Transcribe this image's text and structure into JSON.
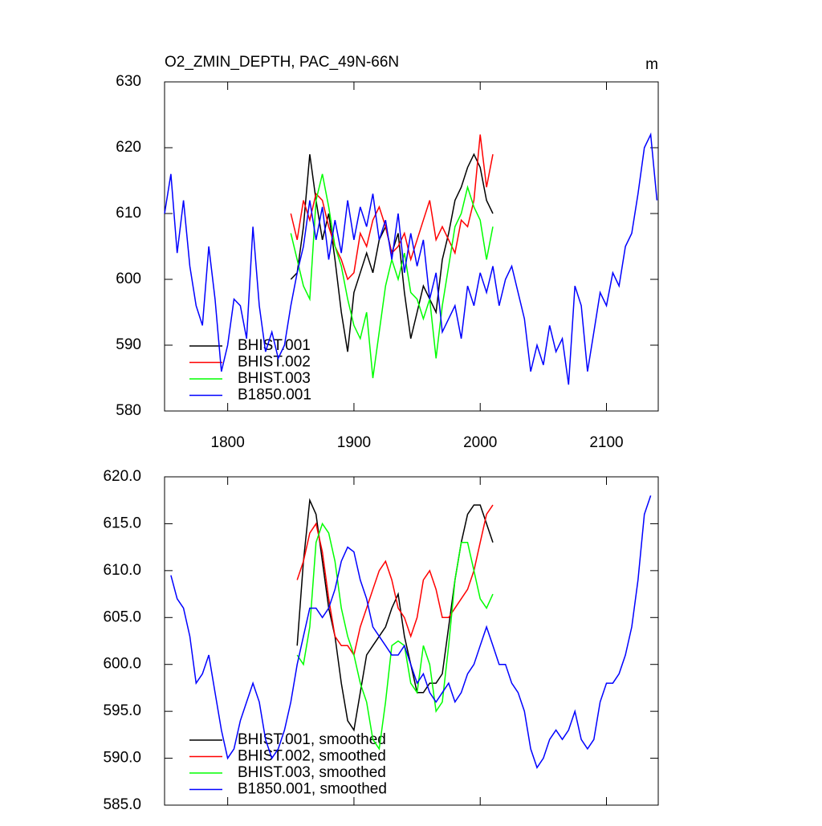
{
  "chart_data": [
    {
      "type": "line",
      "title": "O2_ZMIN_DEPTH, PAC_49N-66N",
      "units": "m",
      "xlim": [
        1750,
        2141
      ],
      "xticks": [
        1800,
        1900,
        2000,
        2100
      ],
      "xtick_labels": true,
      "ylim": [
        580,
        630
      ],
      "yticks": [
        580,
        590,
        600,
        610,
        620,
        630
      ],
      "legend": "lower-left",
      "series": [
        {
          "name": "BHIST.001",
          "color": "#000000",
          "x": [
            1850,
            1855,
            1860,
            1865,
            1870,
            1875,
            1880,
            1885,
            1890,
            1895,
            1900,
            1905,
            1910,
            1915,
            1920,
            1925,
            1930,
            1935,
            1940,
            1945,
            1950,
            1955,
            1960,
            1965,
            1970,
            1975,
            1980,
            1985,
            1990,
            1995,
            2000,
            2005,
            2010
          ],
          "values": [
            600,
            601,
            608,
            619,
            612,
            606,
            610,
            603,
            595,
            589,
            598,
            601,
            604,
            601,
            606,
            608,
            604,
            607,
            598,
            591,
            595,
            599,
            597,
            595,
            603,
            607,
            612,
            614,
            617,
            619,
            617,
            612,
            610
          ]
        },
        {
          "name": "BHIST.002",
          "color": "#ff0000",
          "x": [
            1850,
            1855,
            1860,
            1865,
            1870,
            1875,
            1880,
            1885,
            1890,
            1895,
            1900,
            1905,
            1910,
            1915,
            1920,
            1925,
            1930,
            1935,
            1940,
            1945,
            1950,
            1955,
            1960,
            1965,
            1970,
            1975,
            1980,
            1985,
            1990,
            1995,
            2000,
            2005,
            2010
          ],
          "values": [
            610,
            606,
            612,
            609,
            613,
            612,
            608,
            605,
            603,
            600,
            601,
            607,
            605,
            609,
            611,
            608,
            604,
            605,
            607,
            603,
            606,
            609,
            612,
            606,
            608,
            606,
            604,
            609,
            608,
            612,
            622,
            614,
            619
          ]
        },
        {
          "name": "BHIST.003",
          "color": "#00ff00",
          "x": [
            1850,
            1855,
            1860,
            1865,
            1870,
            1875,
            1880,
            1885,
            1890,
            1895,
            1900,
            1905,
            1910,
            1915,
            1920,
            1925,
            1930,
            1935,
            1940,
            1945,
            1950,
            1955,
            1960,
            1965,
            1970,
            1975,
            1980,
            1985,
            1990,
            1995,
            2000,
            2005,
            2010
          ],
          "values": [
            607,
            603,
            599,
            597,
            612,
            616,
            611,
            605,
            602,
            597,
            593,
            591,
            595,
            585,
            592,
            599,
            603,
            600,
            604,
            598,
            597,
            594,
            597,
            588,
            596,
            602,
            608,
            610,
            614,
            611,
            609,
            603,
            608
          ]
        },
        {
          "name": "B1850.001",
          "color": "#0000ff",
          "x": [
            1750,
            1755,
            1760,
            1765,
            1770,
            1775,
            1780,
            1785,
            1790,
            1795,
            1800,
            1805,
            1810,
            1815,
            1820,
            1825,
            1830,
            1835,
            1840,
            1845,
            1850,
            1855,
            1860,
            1865,
            1870,
            1875,
            1880,
            1885,
            1890,
            1895,
            1900,
            1905,
            1910,
            1915,
            1920,
            1925,
            1930,
            1935,
            1940,
            1945,
            1950,
            1955,
            1960,
            1965,
            1970,
            1975,
            1980,
            1985,
            1990,
            1995,
            2000,
            2005,
            2010,
            2015,
            2020,
            2025,
            2030,
            2035,
            2040,
            2045,
            2050,
            2055,
            2060,
            2065,
            2070,
            2075,
            2080,
            2085,
            2090,
            2095,
            2100,
            2105,
            2110,
            2115,
            2120,
            2125,
            2130,
            2135,
            2140
          ],
          "values": [
            610,
            616,
            604,
            612,
            602,
            596,
            593,
            605,
            597,
            586,
            590,
            597,
            596,
            591,
            608,
            596,
            589,
            592,
            588,
            590,
            596,
            601,
            605,
            612,
            606,
            611,
            603,
            609,
            604,
            612,
            606,
            611,
            608,
            613,
            606,
            609,
            603,
            610,
            601,
            607,
            602,
            606,
            597,
            601,
            592,
            594,
            596,
            591,
            599,
            596,
            601,
            598,
            602,
            596,
            600,
            602,
            598,
            594,
            586,
            590,
            587,
            593,
            589,
            591,
            584,
            599,
            596,
            586,
            592,
            598,
            596,
            601,
            599,
            605,
            607,
            613,
            620,
            622,
            612
          ]
        }
      ]
    },
    {
      "type": "line",
      "xlim": [
        1750,
        2141
      ],
      "xticks": [
        1800,
        1900,
        2000,
        2100
      ],
      "xtick_labels": false,
      "ylim": [
        585,
        620
      ],
      "yticks": [
        {
          "value": 585,
          "label": "585.0"
        },
        {
          "value": 590,
          "label": "590.0"
        },
        {
          "value": 595,
          "label": "595.0"
        },
        {
          "value": 600,
          "label": "600.0"
        },
        {
          "value": 605,
          "label": "605.0"
        },
        {
          "value": 610,
          "label": "610.0"
        },
        {
          "value": 615,
          "label": "615.0"
        },
        {
          "value": 620,
          "label": "620.0"
        }
      ],
      "legend": "lower-left",
      "series": [
        {
          "name": "BHIST.001, smoothed",
          "color": "#000000",
          "x": [
            1855,
            1860,
            1865,
            1870,
            1875,
            1880,
            1885,
            1890,
            1895,
            1900,
            1905,
            1910,
            1915,
            1920,
            1925,
            1930,
            1935,
            1940,
            1945,
            1950,
            1955,
            1960,
            1965,
            1970,
            1975,
            1980,
            1985,
            1990,
            1995,
            2000,
            2005,
            2010
          ],
          "values": [
            602,
            611,
            617.5,
            616,
            611,
            606,
            603,
            598,
            594,
            593,
            597,
            601,
            602,
            603,
            604,
            606,
            607.5,
            603,
            600,
            597,
            597,
            598,
            598,
            599,
            604,
            609,
            613,
            616,
            617,
            617,
            615,
            613
          ]
        },
        {
          "name": "BHIST.002, smoothed",
          "color": "#ff0000",
          "x": [
            1855,
            1860,
            1865,
            1870,
            1875,
            1880,
            1885,
            1890,
            1895,
            1900,
            1905,
            1910,
            1915,
            1920,
            1925,
            1930,
            1935,
            1940,
            1945,
            1950,
            1955,
            1960,
            1965,
            1970,
            1975,
            1980,
            1985,
            1990,
            1995,
            2000,
            2005,
            2010
          ],
          "values": [
            609,
            611,
            614,
            615,
            612,
            607,
            603,
            602,
            602,
            601,
            604,
            606,
            608,
            610,
            611,
            609,
            606,
            605,
            603,
            605,
            609,
            610,
            608,
            605,
            605,
            606,
            607,
            608,
            610,
            613,
            616,
            617
          ]
        },
        {
          "name": "BHIST.003, smoothed",
          "color": "#00ff00",
          "x": [
            1855,
            1860,
            1865,
            1870,
            1875,
            1880,
            1885,
            1890,
            1895,
            1900,
            1905,
            1910,
            1915,
            1920,
            1925,
            1930,
            1935,
            1940,
            1945,
            1950,
            1955,
            1960,
            1965,
            1970,
            1975,
            1980,
            1985,
            1990,
            1995,
            2000,
            2005,
            2010
          ],
          "values": [
            601,
            600,
            604,
            613,
            615,
            614,
            611,
            606,
            603,
            601,
            598,
            596,
            592,
            591,
            596,
            602,
            602.5,
            602,
            598,
            597,
            602,
            600,
            595,
            596,
            602,
            609,
            613,
            613,
            610,
            607,
            606,
            607.5
          ]
        },
        {
          "name": "B1850.001, smoothed",
          "color": "#0000ff",
          "x": [
            1755,
            1760,
            1765,
            1770,
            1775,
            1780,
            1785,
            1790,
            1795,
            1800,
            1805,
            1810,
            1815,
            1820,
            1825,
            1830,
            1835,
            1840,
            1845,
            1850,
            1855,
            1860,
            1865,
            1870,
            1875,
            1880,
            1885,
            1890,
            1895,
            1900,
            1905,
            1910,
            1915,
            1920,
            1925,
            1930,
            1935,
            1940,
            1945,
            1950,
            1955,
            1960,
            1965,
            1970,
            1975,
            1980,
            1985,
            1990,
            1995,
            2000,
            2005,
            2010,
            2015,
            2020,
            2025,
            2030,
            2035,
            2040,
            2045,
            2050,
            2055,
            2060,
            2065,
            2070,
            2075,
            2080,
            2085,
            2090,
            2095,
            2100,
            2105,
            2110,
            2115,
            2120,
            2125,
            2130,
            2135
          ],
          "values": [
            609.5,
            607,
            606,
            603,
            598,
            599,
            601,
            597,
            593,
            590,
            591,
            594,
            596,
            598,
            596,
            592,
            590,
            591,
            593,
            596,
            600,
            603,
            606,
            606,
            605,
            606,
            608,
            611,
            612.5,
            612,
            609,
            607,
            604,
            603,
            602,
            601,
            601,
            602,
            600,
            598,
            599,
            597,
            596,
            597,
            598,
            596,
            597,
            599,
            600,
            602,
            604,
            602,
            600,
            600,
            598,
            597,
            595,
            591,
            589,
            590,
            592,
            593,
            592,
            593,
            595,
            592,
            591,
            592,
            596,
            598,
            598,
            599,
            601,
            604,
            609,
            616,
            618
          ]
        }
      ]
    }
  ]
}
